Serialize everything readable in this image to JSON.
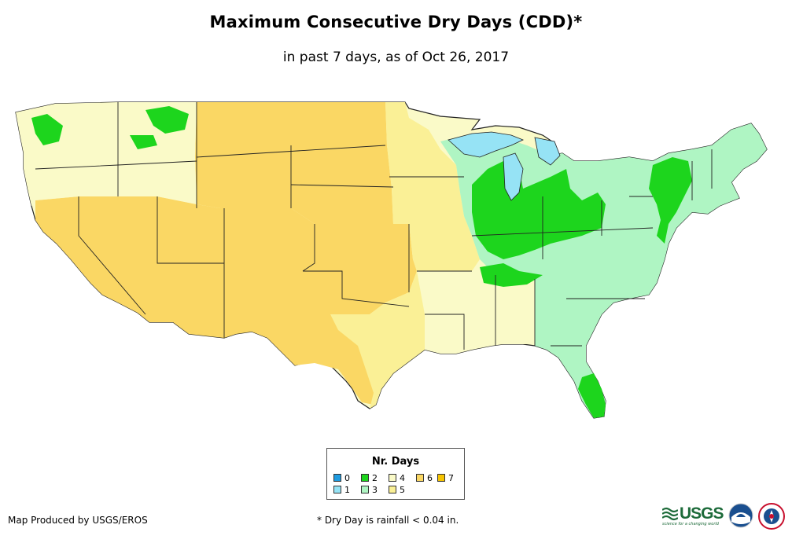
{
  "title": "Maximum Consecutive Dry Days (CDD)*",
  "subtitle": "in past 7 days, as of Oct 26, 2017",
  "legend": {
    "title": "Nr. Days",
    "items": [
      {
        "label": "0",
        "color": "#1e9be0"
      },
      {
        "label": "1",
        "color": "#96e3f5"
      },
      {
        "label": "2",
        "color": "#1dd51d"
      },
      {
        "label": "3",
        "color": "#aff5c3"
      },
      {
        "label": "4",
        "color": "#fafac8"
      },
      {
        "label": "5",
        "color": "#faf096"
      },
      {
        "label": "6",
        "color": "#fad764"
      },
      {
        "label": "7",
        "color": "#f5c300"
      }
    ]
  },
  "footer": {
    "credit": "Map Produced by USGS/EROS",
    "note": "* Dry Day is rainfall < 0.04 in."
  },
  "logos": {
    "usgs": "USGS",
    "usgs_tagline": "science for a changing world",
    "noaa_icon": "noaa-logo-icon",
    "nws_icon": "nws-logo-icon"
  },
  "colors": {
    "boundary": "#222222",
    "water_lakes": "#96e3f5"
  }
}
